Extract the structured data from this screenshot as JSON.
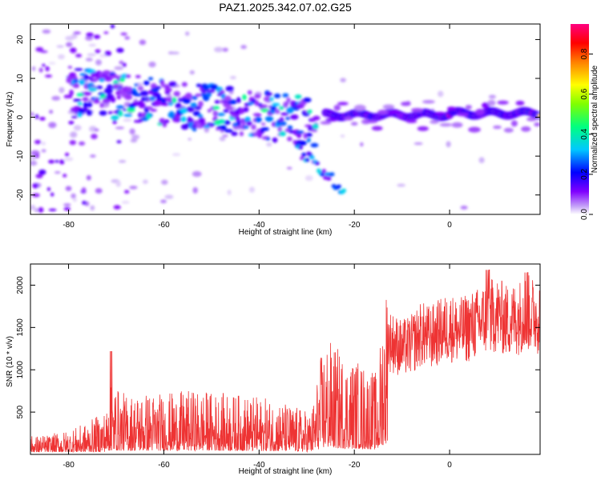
{
  "figure": {
    "title": "PAZ1.2025.342.07.02.G25"
  },
  "chart_data": [
    {
      "type": "heatmap",
      "title": "PAZ1.2025.342.07.02.G25",
      "xlabel": "Height of straight line (km)",
      "ylabel": "Frequency (Hz)",
      "xlim": [
        -88,
        19
      ],
      "ylim": [
        -25,
        24
      ],
      "xticks": [
        -80,
        -60,
        -40,
        -20,
        0
      ],
      "yticks": [
        -20,
        -10,
        0,
        10,
        20
      ],
      "colorbar": {
        "label": "Normalized spectral amplitude",
        "range": [
          0,
          0.95
        ],
        "ticks": [
          0.0,
          0.2,
          0.4,
          0.6,
          0.8
        ],
        "tick_labels": [
          "0.0",
          "0.2",
          "0.4",
          "0.6",
          "0.8"
        ],
        "colormap": [
          "#ffffff",
          "#c8a8f8",
          "#8000ff",
          "#0000ff",
          "#00c8ff",
          "#00ff80",
          "#80ff00",
          "#ffff00",
          "#ff8000",
          "#ff0000",
          "#ff0080"
        ]
      },
      "features": [
        {
          "name": "main ridge (high-height)",
          "x_range": [
            -26,
            19
          ],
          "freq_hz": [
            1,
            2
          ],
          "amplitude": [
            0.4,
            0.9
          ]
        },
        {
          "name": "scattered band (low-height)",
          "x_range": [
            -80,
            -28
          ],
          "freq_hz": [
            -6,
            10
          ],
          "amplitude": [
            0.1,
            0.5
          ]
        },
        {
          "name": "descending branch",
          "x_range": [
            -32,
            -22
          ],
          "freq_hz": [
            -20,
            -8
          ],
          "amplitude": [
            0.1,
            0.4
          ]
        }
      ]
    },
    {
      "type": "line",
      "xlabel": "Height of straight line (km)",
      "ylabel": "SNR (10 * v/v)",
      "xlim": [
        -88,
        19
      ],
      "ylim": [
        0,
        2250
      ],
      "xticks": [
        -80,
        -60,
        -40,
        -20,
        0
      ],
      "yticks": [
        500,
        1000,
        1500,
        2000
      ],
      "series": [
        {
          "name": "SNR",
          "color": "#ee3333",
          "x": [
            -88,
            -84,
            -80,
            -76,
            -72,
            -71,
            -68,
            -64,
            -60,
            -56,
            -52,
            -48,
            -44,
            -40,
            -36,
            -32,
            -29,
            -27,
            -26,
            -24,
            -22,
            -20,
            -17,
            -15,
            -14,
            -13,
            -12,
            -10,
            -8,
            -6,
            -4,
            -2,
            0,
            2,
            4,
            6,
            8,
            10,
            12,
            14,
            16,
            19
          ],
          "values": [
            130,
            140,
            170,
            220,
            320,
            500,
            420,
            440,
            430,
            440,
            450,
            430,
            420,
            400,
            380,
            330,
            300,
            700,
            820,
            760,
            700,
            680,
            620,
            560,
            1100,
            1350,
            1320,
            1250,
            1300,
            1420,
            1380,
            1450,
            1500,
            1450,
            1500,
            1550,
            1620,
            1650,
            1580,
            1600,
            1680,
            1620
          ]
        }
      ]
    }
  ]
}
